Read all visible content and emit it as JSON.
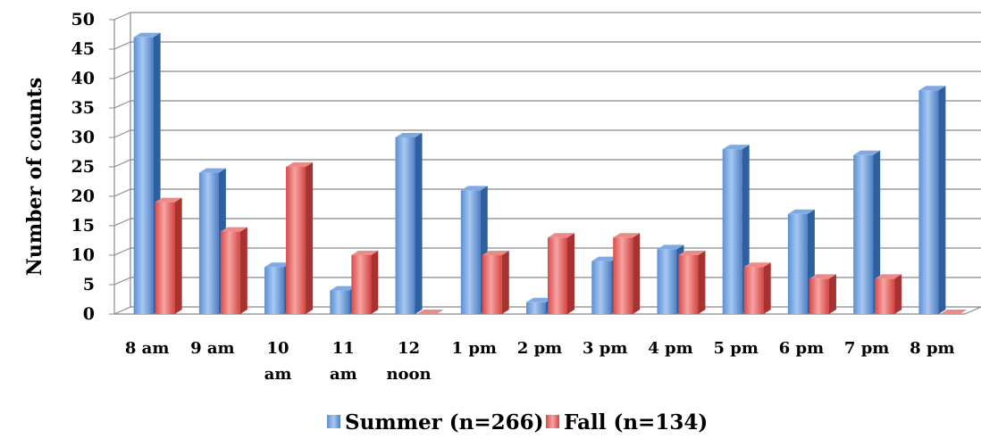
{
  "chart_data": {
    "type": "bar",
    "style": "3d-clustered-column",
    "categories": [
      "8 am",
      "9 am",
      "10 am",
      "11 am",
      "12 noon",
      "1 pm",
      "2 pm",
      "3 pm",
      "4 pm",
      "5 pm",
      "6 pm",
      "7 pm",
      "8 pm"
    ],
    "category_lines": [
      [
        "8 am"
      ],
      [
        "9 am"
      ],
      [
        "10",
        "am"
      ],
      [
        "11",
        "am"
      ],
      [
        "12",
        "noon"
      ],
      [
        "1 pm"
      ],
      [
        "2 pm"
      ],
      [
        "3 pm"
      ],
      [
        "4 pm"
      ],
      [
        "5 pm"
      ],
      [
        "6 pm"
      ],
      [
        "7 pm"
      ],
      [
        "8 pm"
      ]
    ],
    "series": [
      {
        "name": "Summer (n=266)",
        "color": "#4f81bd",
        "values": [
          47,
          24,
          8,
          4,
          30,
          21,
          2,
          9,
          11,
          28,
          17,
          27,
          38
        ]
      },
      {
        "name": "Fall (n=134)",
        "color": "#e05050",
        "values": [
          19,
          14,
          25,
          10,
          0,
          10,
          13,
          13,
          10,
          8,
          6,
          6,
          0
        ]
      }
    ],
    "ylabel": "Number of counts",
    "xlabel": "",
    "title": "",
    "ylim": [
      0,
      50
    ],
    "yticks": [
      0,
      5,
      10,
      15,
      20,
      25,
      30,
      35,
      40,
      45,
      50
    ],
    "grid": true,
    "legend": "bottom"
  }
}
